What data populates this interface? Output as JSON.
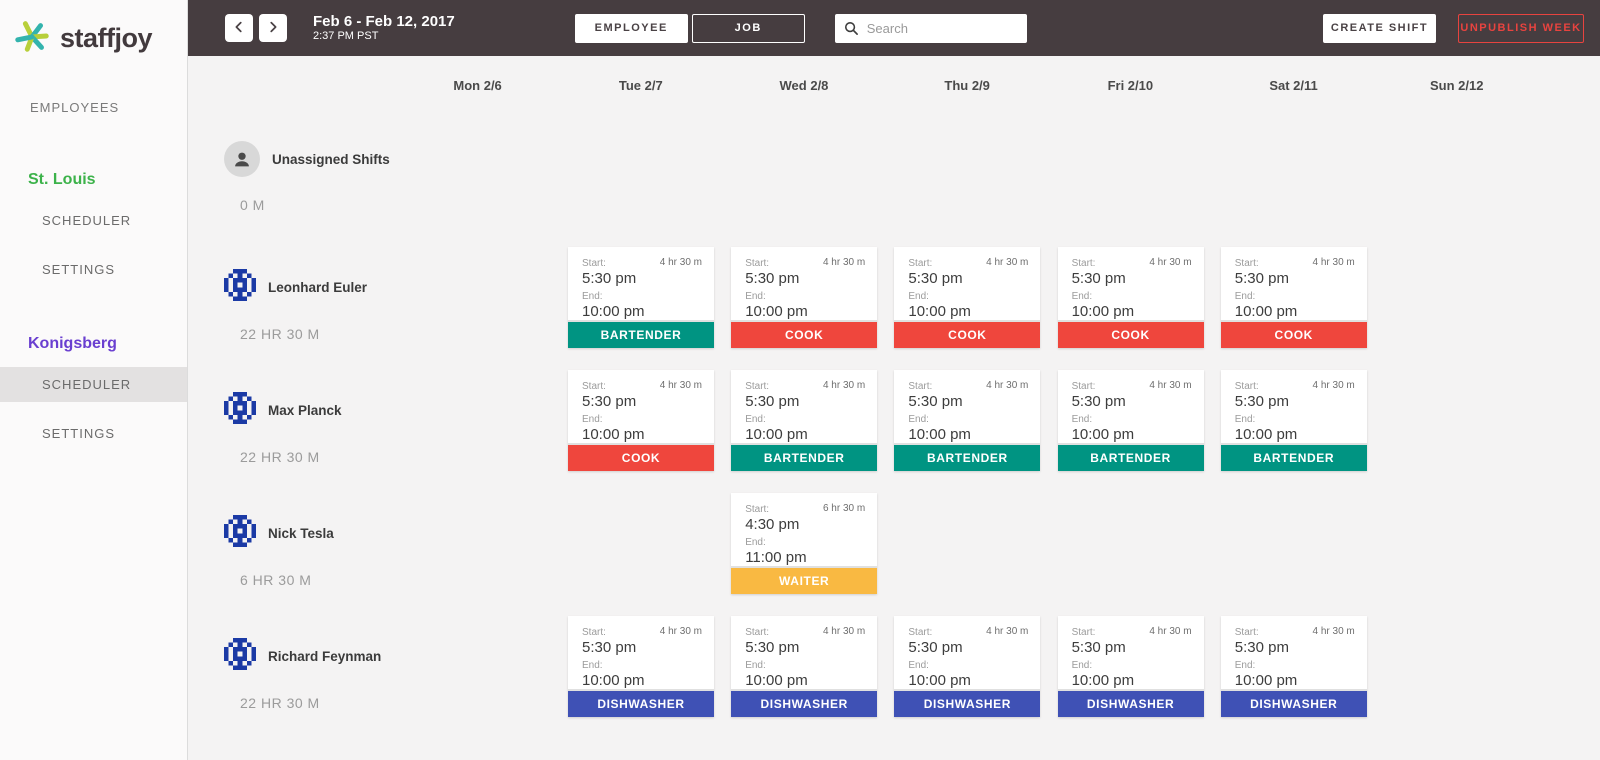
{
  "brand": {
    "name": "staffjoy"
  },
  "topbar": {
    "prev_label": "previous week",
    "next_label": "next week",
    "date_range": "Feb 6 - Feb 12, 2017",
    "time": "2:37 PM PST",
    "toggle": {
      "options": [
        "EMPLOYEE",
        "JOB"
      ],
      "selected": "EMPLOYEE"
    },
    "search_placeholder": "Search",
    "create_shift_label": "CREATE SHIFT",
    "unpublish_label": "UNPUBLISH WEEK"
  },
  "sidebar": {
    "employees_label": "EMPLOYEES",
    "orgs": [
      {
        "name": "St. Louis",
        "color": "#3cb24a",
        "items": [
          {
            "label": "SCHEDULER",
            "active": false
          },
          {
            "label": "SETTINGS",
            "active": false
          }
        ]
      },
      {
        "name": "Konigsberg",
        "color": "#6a3fd0",
        "items": [
          {
            "label": "SCHEDULER",
            "active": true
          },
          {
            "label": "SETTINGS",
            "active": false
          }
        ]
      }
    ]
  },
  "week": {
    "days": [
      "Mon 2/6",
      "Tue 2/7",
      "Wed 2/8",
      "Thu 2/9",
      "Fri 2/10",
      "Sat 2/11",
      "Sun 2/12"
    ]
  },
  "labels": {
    "start": "Start:",
    "end": "End:"
  },
  "roles": {
    "BARTENDER": "#009482",
    "COOK": "#ef463d",
    "WAITER": "#f9b942",
    "DISHWASHER": "#3f51b5"
  },
  "colors": {
    "topbar": "#463d40",
    "bg": "#f4f3f3",
    "green": "#3cb24a",
    "purple": "#6a3fd0",
    "danger": "#e8433f",
    "identicon": "#1b3aa5"
  },
  "rows": [
    {
      "kind": "unassigned",
      "name": "Unassigned Shifts",
      "hours": "0 M",
      "cells": [
        null,
        null,
        null,
        null,
        null,
        null,
        null
      ]
    },
    {
      "kind": "employee",
      "name": "Leonhard Euler",
      "hours": "22 HR 30 M",
      "cells": [
        {
          "start": "5:30 pm",
          "end": "10:00 pm",
          "duration": "4 hr 30 m",
          "role": "BARTENDER"
        },
        {
          "start": "5:30 pm",
          "end": "10:00 pm",
          "duration": "4 hr 30 m",
          "role": "COOK"
        },
        {
          "start": "5:30 pm",
          "end": "10:00 pm",
          "duration": "4 hr 30 m",
          "role": "COOK"
        },
        {
          "start": "5:30 pm",
          "end": "10:00 pm",
          "duration": "4 hr 30 m",
          "role": "COOK"
        },
        {
          "start": "5:30 pm",
          "end": "10:00 pm",
          "duration": "4 hr 30 m",
          "role": "COOK"
        },
        null,
        null
      ]
    },
    {
      "kind": "employee",
      "name": "Max Planck",
      "hours": "22 HR 30 M",
      "cells": [
        {
          "start": "5:30 pm",
          "end": "10:00 pm",
          "duration": "4 hr 30 m",
          "role": "COOK"
        },
        {
          "start": "5:30 pm",
          "end": "10:00 pm",
          "duration": "4 hr 30 m",
          "role": "BARTENDER"
        },
        {
          "start": "5:30 pm",
          "end": "10:00 pm",
          "duration": "4 hr 30 m",
          "role": "BARTENDER"
        },
        {
          "start": "5:30 pm",
          "end": "10:00 pm",
          "duration": "4 hr 30 m",
          "role": "BARTENDER"
        },
        {
          "start": "5:30 pm",
          "end": "10:00 pm",
          "duration": "4 hr 30 m",
          "role": "BARTENDER"
        },
        null,
        null
      ]
    },
    {
      "kind": "employee",
      "name": "Nick Tesla",
      "hours": "6 HR 30 M",
      "cells": [
        null,
        {
          "start": "4:30 pm",
          "end": "11:00 pm",
          "duration": "6 hr 30 m",
          "role": "WAITER"
        },
        null,
        null,
        null,
        null,
        null
      ]
    },
    {
      "kind": "employee",
      "name": "Richard Feynman",
      "hours": "22 HR 30 M",
      "cells": [
        {
          "start": "5:30 pm",
          "end": "10:00 pm",
          "duration": "4 hr 30 m",
          "role": "DISHWASHER"
        },
        {
          "start": "5:30 pm",
          "end": "10:00 pm",
          "duration": "4 hr 30 m",
          "role": "DISHWASHER"
        },
        {
          "start": "5:30 pm",
          "end": "10:00 pm",
          "duration": "4 hr 30 m",
          "role": "DISHWASHER"
        },
        {
          "start": "5:30 pm",
          "end": "10:00 pm",
          "duration": "4 hr 30 m",
          "role": "DISHWASHER"
        },
        {
          "start": "5:30 pm",
          "end": "10:00 pm",
          "duration": "4 hr 30 m",
          "role": "DISHWASHER"
        },
        null,
        null
      ]
    }
  ]
}
